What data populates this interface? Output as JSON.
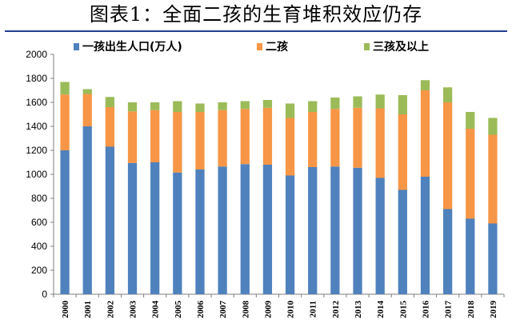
{
  "title": "图表1：全面二孩的生育堆积效应仍存",
  "chart_data": {
    "type": "bar",
    "stacked": true,
    "categories": [
      "2000",
      "2001",
      "2002",
      "2003",
      "2004",
      "2005",
      "2006",
      "2007",
      "2008",
      "2009",
      "2010",
      "2011",
      "2012",
      "2013",
      "2014",
      "2015",
      "2016",
      "2017",
      "2018",
      "2019"
    ],
    "series": [
      {
        "name": "一孩出生人口(万人)",
        "color": "#4f81bd",
        "values": [
          1200,
          1400,
          1230,
          1095,
          1100,
          1015,
          1040,
          1065,
          1085,
          1080,
          990,
          1060,
          1065,
          1055,
          970,
          870,
          980,
          710,
          630,
          590
        ]
      },
      {
        "name": "二孩",
        "color": "#f79646",
        "values": [
          465,
          270,
          330,
          430,
          435,
          505,
          480,
          470,
          460,
          475,
          480,
          460,
          480,
          500,
          580,
          630,
          720,
          890,
          750,
          740
        ]
      },
      {
        "name": "三孩及以上",
        "color": "#9bbb59",
        "values": [
          105,
          40,
          85,
          75,
          65,
          90,
          70,
          65,
          65,
          65,
          120,
          90,
          95,
          95,
          115,
          160,
          85,
          125,
          140,
          140
        ]
      }
    ],
    "ylim": [
      0,
      2000
    ],
    "yticks": [
      0,
      200,
      400,
      600,
      800,
      1000,
      1200,
      1400,
      1600,
      1800,
      2000
    ],
    "grid": false,
    "legend": "top"
  }
}
